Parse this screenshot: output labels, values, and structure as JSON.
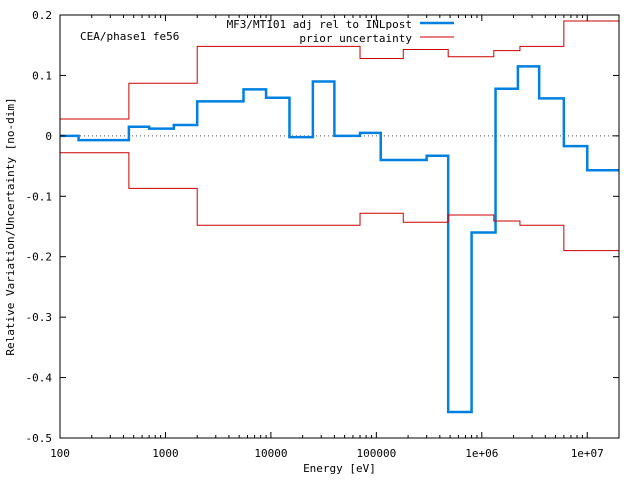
{
  "chart_data": {
    "type": "line",
    "step": true,
    "annotation": "CEA/phase1 fe56",
    "xlabel": "Energy [eV]",
    "ylabel": "Relative Variation/Uncertainty [no-dim]",
    "xscale": "log",
    "xlim": [
      100,
      20000000
    ],
    "ylim": [
      -0.5,
      0.2
    ],
    "x_tick_values": [
      100,
      1000,
      10000,
      100000,
      1000000,
      10000000
    ],
    "x_tick_labels": [
      "100",
      "1000",
      "10000",
      "100000",
      "1e+06",
      "1e+07"
    ],
    "y_tick_values": [
      -0.5,
      -0.4,
      -0.3,
      -0.2,
      -0.1,
      0,
      0.1,
      0.2
    ],
    "y_tick_labels": [
      "-0.5",
      "-0.4",
      "-0.3",
      "-0.2",
      "-0.1",
      "0",
      "0.1",
      "0.2"
    ],
    "zero_line": true,
    "legend_position": "top-right",
    "series": [
      {
        "name": "MF3/MT101 adj rel to INLpost",
        "color": "#0080e0",
        "bins": [
          [
            100,
            150,
            0.0
          ],
          [
            150,
            450,
            -0.007
          ],
          [
            450,
            700,
            0.015
          ],
          [
            700,
            1200,
            0.012
          ],
          [
            1200,
            2000,
            0.018
          ],
          [
            2000,
            5500,
            0.057
          ],
          [
            5500,
            9000,
            0.077
          ],
          [
            9000,
            15000,
            0.063
          ],
          [
            15000,
            25000,
            -0.002
          ],
          [
            25000,
            40000,
            0.09
          ],
          [
            40000,
            70000,
            0.0
          ],
          [
            70000,
            110000,
            0.005
          ],
          [
            110000,
            300000,
            -0.04
          ],
          [
            300000,
            480000,
            -0.033
          ],
          [
            480000,
            800000,
            -0.457
          ],
          [
            800000,
            1350000,
            -0.16
          ],
          [
            1350000,
            2200000,
            0.078
          ],
          [
            2200000,
            3500000,
            0.115
          ],
          [
            3500000,
            6000000,
            0.062
          ],
          [
            6000000,
            10000000,
            -0.017
          ],
          [
            10000000,
            20000000,
            -0.057
          ]
        ]
      },
      {
        "name": "prior uncertainty",
        "color": "#cc0000",
        "bins": [
          [
            100,
            450,
            0.028
          ],
          [
            450,
            2000,
            0.087
          ],
          [
            2000,
            70000,
            0.148
          ],
          [
            70000,
            180000,
            0.128
          ],
          [
            180000,
            480000,
            0.143
          ],
          [
            480000,
            1300000,
            0.131
          ],
          [
            1300000,
            2300000,
            0.141
          ],
          [
            2300000,
            6000000,
            0.148
          ],
          [
            6000000,
            20000000,
            0.19
          ]
        ]
      }
    ]
  }
}
